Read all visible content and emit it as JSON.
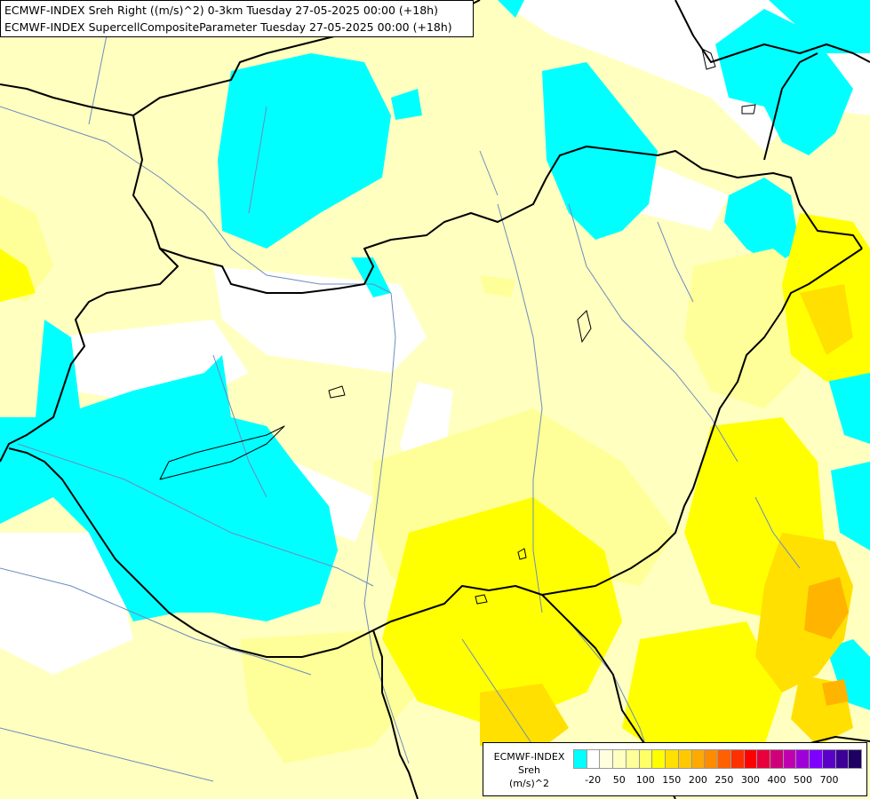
{
  "titles": {
    "line1": "ECMWF-INDEX Sreh Right ((m/s)^2) 0-3km Tuesday 27-05-2025 00:00 (+18h)",
    "line2": "ECMWF-INDEX SupercellCompositeParameter Tuesday 27-05-2025 00:00 (+18h)"
  },
  "legend": {
    "line1": "ECMWF-INDEX",
    "line2": "Sreh",
    "line3": "(m/s)^2",
    "colors": [
      "#00ffff",
      "#ffffff",
      "#ffffe0",
      "#ffffc0",
      "#ffff99",
      "#ffff66",
      "#ffff00",
      "#ffe000",
      "#ffc800",
      "#ffaa00",
      "#ff8c00",
      "#ff6000",
      "#ff3000",
      "#ff0000",
      "#e8003c",
      "#d0007a",
      "#c000b0",
      "#a000d8",
      "#8000ff",
      "#5a00c8",
      "#3c0096",
      "#1e0064"
    ],
    "ticks": [
      "-20",
      "50",
      "100",
      "150",
      "200",
      "250",
      "300",
      "400",
      "500",
      "700"
    ]
  },
  "palette": {
    "cyan": "#00ffff",
    "white": "#ffffff",
    "pale_yellow": "#ffffc0",
    "light_yellow": "#ffff99",
    "yellow": "#ffff00",
    "gold": "#ffe000",
    "orange": "#ffb400",
    "border": "#000000",
    "river": "#6e8cbe"
  }
}
